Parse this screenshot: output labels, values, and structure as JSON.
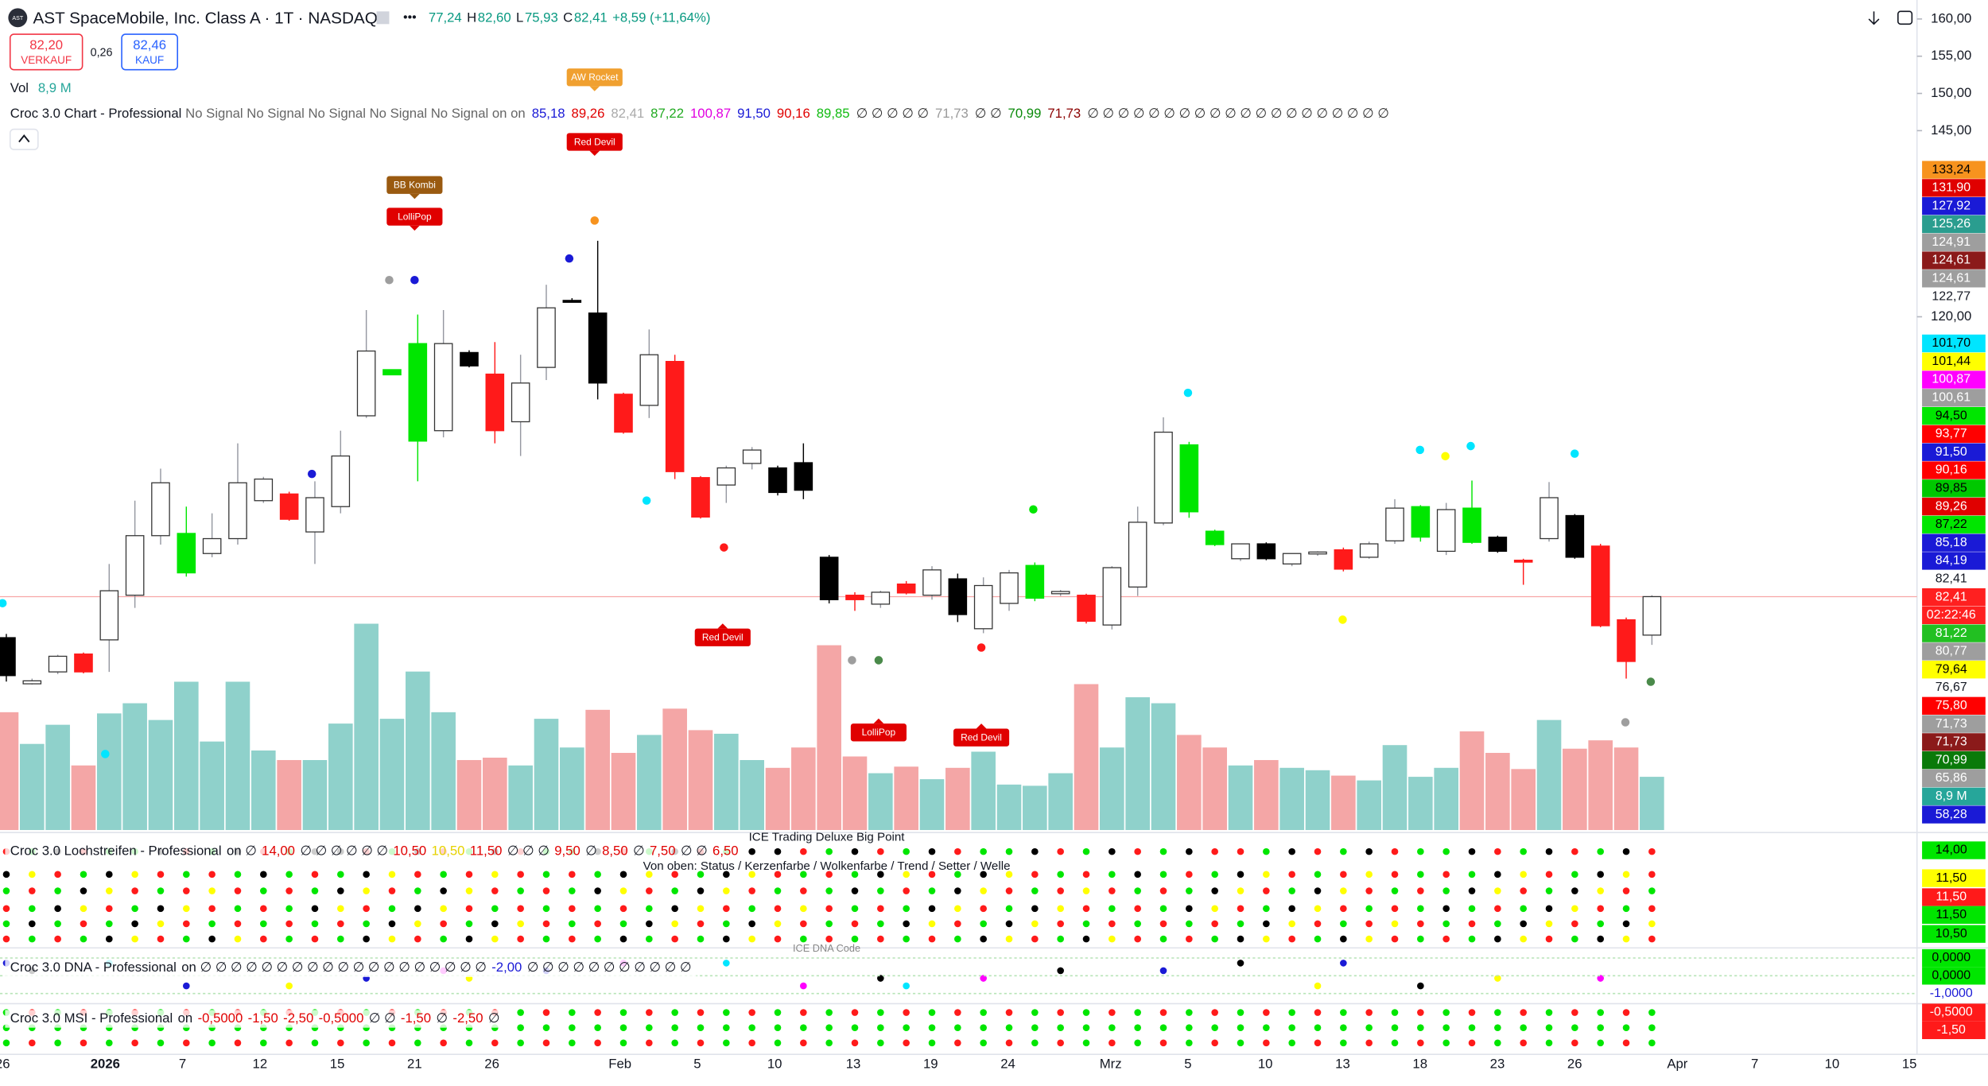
{
  "header": {
    "logo": "AST",
    "symbol": "AST SpaceMobile, Inc. Class A · 1T · NASDAQ",
    "menu": "•••",
    "ohlc": [
      {
        "value": "77,24"
      },
      {
        "key": "H",
        "value": "82,60"
      },
      {
        "key": "L",
        "value": "75,93"
      },
      {
        "key": "C",
        "value": "82,41"
      }
    ],
    "change": "+8,59 (+11,64%)",
    "sell_price": "82,20",
    "sell_label": "VERKAUF",
    "spread": "0,26",
    "buy_price": "82,46",
    "buy_label": "KAUF",
    "vol_label": "Vol",
    "vol_value": "8,9 M"
  },
  "indicator": {
    "name": "Croc 3.0 Chart - Professional",
    "signals": "No Signal No Signal No Signal No Signal No Signal on on",
    "values": [
      {
        "text": "85,18",
        "color": "#1a1ad6"
      },
      {
        "text": "89,26",
        "color": "#e00000"
      },
      {
        "text": "82,41",
        "color": "#aaaaaa"
      },
      {
        "text": "87,22",
        "color": "#22aa22"
      },
      {
        "text": "100,87",
        "color": "#e000e0"
      },
      {
        "text": "91,50",
        "color": "#1a1ad6"
      },
      {
        "text": "90,16",
        "color": "#e00000"
      },
      {
        "text": "89,85",
        "color": "#11bb11"
      },
      {
        "text": "∅ ∅ ∅ ∅ ∅",
        "color": "#333333"
      },
      {
        "text": "71,73",
        "color": "#999999"
      },
      {
        "text": "∅ ∅",
        "color": "#333333"
      },
      {
        "text": "70,99",
        "color": "#0a8a0a"
      },
      {
        "text": "71,73",
        "color": "#8b0000"
      },
      {
        "text": "∅ ∅ ∅ ∅ ∅ ∅ ∅ ∅ ∅ ∅ ∅ ∅ ∅ ∅ ∅ ∅ ∅ ∅ ∅ ∅",
        "color": "#333333"
      }
    ]
  },
  "annotations": [
    {
      "text": "AW Rocket",
      "color": "#f0a030"
    },
    {
      "text": "Red Devil",
      "color": "#e00000"
    },
    {
      "text": "BB Kombi",
      "color": "#9a5a10"
    },
    {
      "text": "LolliPop",
      "color": "#e00000"
    },
    {
      "text": "Red Devil",
      "color": "#e00000"
    },
    {
      "text": "LolliPop",
      "color": "#e00000"
    },
    {
      "text": "Red Devil",
      "color": "#e00000"
    }
  ],
  "panes": {
    "lochstreifen": {
      "name": "Croc 3.0 Lochstreifen - Professional",
      "values": [
        {
          "text": "on ∅",
          "color": "#131722"
        },
        {
          "text": "14,00",
          "color": "#e00000"
        },
        {
          "text": "∅ ∅ ∅ ∅ ∅ ∅",
          "color": "#131722"
        },
        {
          "text": "10,50",
          "color": "#e00000"
        },
        {
          "text": "10,50",
          "color": "#e6d200"
        },
        {
          "text": "11,50",
          "color": "#e00000"
        },
        {
          "text": "∅ ∅ ∅",
          "color": "#131722"
        },
        {
          "text": "9,50",
          "color": "#e00000"
        },
        {
          "text": "∅",
          "color": "#131722"
        },
        {
          "text": "8,50",
          "color": "#e00000"
        },
        {
          "text": "∅",
          "color": "#131722"
        },
        {
          "text": "7,50",
          "color": "#e00000"
        },
        {
          "text": "∅ ∅",
          "color": "#131722"
        },
        {
          "text": "6,50",
          "color": "#e00000"
        }
      ],
      "caption": "ICE Trading Deluxe Big Point",
      "legend": "Von oben: Status / Kerzenfarbe / Wolkenfarbe / Trend / Setter / Welle",
      "axis_labels": [
        {
          "label": "14,00",
          "bg": "#00e600",
          "fg": "#000000"
        },
        {
          "label": "11,50",
          "bg": "#ffff00",
          "fg": "#000000"
        },
        {
          "label": "11,50",
          "bg": "#ff1a1a",
          "fg": "#ffffff"
        },
        {
          "label": "11,50",
          "bg": "#00e600",
          "fg": "#000000"
        },
        {
          "label": "10,50",
          "bg": "#00e600",
          "fg": "#000000"
        }
      ]
    },
    "dna": {
      "name": "Croc 3.0 DNA - Professional",
      "values": [
        {
          "text": "on ∅ ∅ ∅ ∅ ∅ ∅ ∅ ∅ ∅ ∅ ∅ ∅ ∅ ∅ ∅ ∅ ∅ ∅ ∅",
          "color": "#131722"
        },
        {
          "text": "-2,00",
          "color": "#1a1ad6"
        },
        {
          "text": "∅ ∅ ∅ ∅ ∅ ∅ ∅ ∅ ∅ ∅ ∅",
          "color": "#131722"
        }
      ],
      "caption": "ICE DNA Code",
      "axis_labels": [
        {
          "label": "0,0000",
          "bg": "#00e600",
          "fg": "#000000"
        },
        {
          "label": "0,0000",
          "bg": "#00e600",
          "fg": "#000000"
        },
        {
          "label": "-1,0000",
          "bg": "#ffffff",
          "fg": "#1a1ad6"
        }
      ]
    },
    "msi": {
      "name": "Croc 3.0 MSI - Professional",
      "values": [
        {
          "text": "on",
          "color": "#131722"
        },
        {
          "text": "-0,5000",
          "color": "#e00000"
        },
        {
          "text": "-1,50",
          "color": "#e00000"
        },
        {
          "text": "-2,50",
          "color": "#e00000"
        },
        {
          "text": "-0,5000",
          "color": "#e00000"
        },
        {
          "text": "∅ ∅",
          "color": "#131722"
        },
        {
          "text": "-1,50",
          "color": "#e00000"
        },
        {
          "text": "∅",
          "color": "#131722"
        },
        {
          "text": "-2,50",
          "color": "#e00000"
        },
        {
          "text": "∅",
          "color": "#131722"
        }
      ],
      "axis_labels": [
        {
          "label": "-0,5000",
          "bg": "#ff1a1a",
          "fg": "#ffffff"
        },
        {
          "label": "-1,50",
          "bg": "#ff1a1a",
          "fg": "#ffffff"
        }
      ]
    }
  },
  "x_axis_labels": [
    "26",
    "2026",
    "7",
    "12",
    "15",
    "21",
    "26",
    "Feb",
    "5",
    "10",
    "13",
    "19",
    "24",
    "Mrz",
    "5",
    "10",
    "13",
    "18",
    "23",
    "26",
    "Apr",
    "7",
    "10",
    "15"
  ],
  "price_badges": {
    "upper": [
      {
        "label": "133,24",
        "bg": "#f7931e",
        "fg": "#000000"
      },
      {
        "label": "131,90",
        "bg": "#e00000",
        "fg": "#ffffff"
      },
      {
        "label": "127,92",
        "bg": "#1a1ad6",
        "fg": "#ffffff"
      },
      {
        "label": "125,26",
        "bg": "#2a9d8f",
        "fg": "#ffffff"
      },
      {
        "label": "124,91",
        "bg": "#9e9e9e",
        "fg": "#ffffff"
      },
      {
        "label": "124,61",
        "bg": "#8b1a1a",
        "fg": "#ffffff"
      },
      {
        "label": "124,61",
        "bg": "#9e9e9e",
        "fg": "#ffffff"
      },
      {
        "label": "122,77"
      }
    ],
    "lower": [
      {
        "label": "101,70",
        "bg": "#00e5ff",
        "fg": "#000000"
      },
      {
        "label": "101,44",
        "bg": "#ffff00",
        "fg": "#000000"
      },
      {
        "label": "100,87",
        "bg": "#ff00ff",
        "fg": "#ffffff"
      },
      {
        "label": "100,61",
        "bg": "#9e9e9e",
        "fg": "#ffffff"
      },
      {
        "label": "94,50",
        "bg": "#00e600",
        "fg": "#000000"
      },
      {
        "label": "93,77",
        "bg": "#ff0000",
        "fg": "#ffffff"
      },
      {
        "label": "91,50",
        "bg": "#1a1ad6",
        "fg": "#ffffff"
      },
      {
        "label": "90,16",
        "bg": "#ff0000",
        "fg": "#ffffff"
      },
      {
        "label": "89,85",
        "bg": "#00c800",
        "fg": "#000000"
      },
      {
        "label": "89,26",
        "bg": "#e00000",
        "fg": "#ffffff"
      },
      {
        "label": "87,22",
        "bg": "#00e600",
        "fg": "#000000"
      },
      {
        "label": "85,18",
        "bg": "#1a1ad6",
        "fg": "#ffffff"
      },
      {
        "label": "84,19",
        "bg": "#1a1ad6",
        "fg": "#ffffff"
      },
      {
        "label": "82,41"
      },
      {
        "label": "82,41",
        "bg": "#ff2020",
        "fg": "#ffffff"
      },
      {
        "label": "02:22:46",
        "bg": "#ff2020",
        "fg": "#ffffff"
      },
      {
        "label": "81,22",
        "bg": "#22c022",
        "fg": "#ffffff"
      },
      {
        "label": "80,77",
        "bg": "#9e9e9e",
        "fg": "#ffffff"
      },
      {
        "label": "79,64",
        "bg": "#ffff00",
        "fg": "#000000"
      },
      {
        "label": "76,67"
      },
      {
        "label": "75,80",
        "bg": "#ff0000",
        "fg": "#ffffff"
      },
      {
        "label": "71,73",
        "bg": "#9e9e9e",
        "fg": "#ffffff"
      },
      {
        "label": "71,73",
        "bg": "#8b1a1a",
        "fg": "#ffffff"
      },
      {
        "label": "70,99",
        "bg": "#0a7a0a",
        "fg": "#ffffff"
      },
      {
        "label": "65,86",
        "bg": "#9e9e9e",
        "fg": "#ffffff"
      },
      {
        "label": "8,9 M",
        "bg": "#26a69a",
        "fg": "#ffffff"
      },
      {
        "label": "58,28",
        "bg": "#1a1ad6",
        "fg": "#ffffff"
      }
    ]
  },
  "chart_data": {
    "type": "candlestick",
    "open": [
      76.9,
      70.7,
      72.3,
      74.7,
      76.6,
      82.6,
      90.6,
      85.6,
      88.2,
      90.2,
      95.3,
      96.2,
      91.1,
      94.5,
      106.7,
      112.2,
      103.3,
      104.7,
      115.2,
      112.3,
      105.9,
      113.2,
      122.2,
      120.5,
      109.6,
      108.1,
      114.0,
      98.4,
      97.4,
      100.3,
      99.7,
      100.4,
      87.7,
      82.6,
      81.4,
      84.1,
      82.6,
      84.8,
      78.1,
      81.5,
      82.2,
      82.8,
      82.6,
      78.6,
      83.7,
      92.3,
      102.8,
      91.2,
      87.5,
      89.5,
      86.8,
      88.2,
      88.7,
      87.7,
      89.9,
      90.4,
      88.5,
      94.3,
      90.4,
      87.3,
      90.2,
      93.3,
      89.2,
      79.3,
      77.24
    ],
    "high": [
      77.4,
      71.4,
      74.6,
      74.9,
      86.8,
      95.3,
      99.6,
      94.5,
      93.6,
      103.0,
      98.5,
      96.5,
      97.9,
      104.7,
      120.9,
      112.9,
      120.3,
      120.9,
      115.5,
      116.6,
      114.9,
      124.3,
      122.5,
      130.2,
      109.8,
      118.3,
      114.9,
      98.6,
      100.0,
      102.5,
      100.0,
      103.0,
      88.0,
      83.0,
      83.2,
      84.5,
      86.5,
      85.5,
      85.0,
      86.0,
      87.0,
      83.3,
      82.8,
      86.5,
      94.5,
      106.5,
      103.2,
      91.4,
      89.5,
      89.7,
      88.2,
      88.5,
      89.0,
      89.8,
      95.5,
      94.7,
      95.0,
      98.0,
      90.6,
      87.5,
      97.8,
      93.5,
      89.5,
      79.6,
      82.6
    ],
    "low": [
      71.0,
      70.6,
      72.0,
      72.1,
      72.3,
      80.9,
      89.4,
      85.1,
      87.7,
      89.4,
      95.0,
      92.6,
      86.8,
      93.6,
      106.4,
      112.2,
      97.9,
      103.8,
      113.2,
      103.0,
      101.3,
      111.5,
      122.0,
      108.9,
      104.3,
      106.4,
      98.2,
      92.9,
      95.0,
      99.5,
      96.0,
      95.5,
      81.5,
      80.5,
      80.9,
      82.7,
      82.0,
      79.0,
      77.5,
      80.5,
      81.8,
      82.5,
      78.8,
      78.0,
      82.5,
      92.0,
      93.0,
      89.2,
      87.2,
      87.3,
      86.5,
      87.9,
      85.8,
      87.5,
      89.5,
      89.8,
      88.0,
      89.5,
      88.3,
      84.0,
      89.8,
      87.5,
      78.3,
      71.4,
      75.93
    ],
    "close": [
      71.8,
      71.1,
      74.4,
      72.3,
      83.2,
      90.6,
      97.7,
      90.9,
      90.2,
      97.7,
      98.2,
      92.8,
      95.7,
      101.3,
      115.4,
      112.9,
      116.4,
      116.4,
      113.4,
      104.7,
      111.1,
      121.2,
      122.2,
      111.1,
      104.5,
      114.9,
      99.2,
      93.1,
      99.7,
      102.1,
      96.4,
      96.7,
      82.0,
      82.0,
      83.0,
      82.9,
      86.0,
      80.0,
      83.9,
      85.6,
      86.6,
      83.1,
      79.1,
      86.3,
      92.4,
      104.5,
      93.8,
      89.4,
      89.5,
      87.5,
      88.2,
      88.4,
      86.1,
      89.5,
      94.3,
      94.5,
      94.1,
      89.7,
      88.5,
      87.1,
      95.7,
      87.7,
      78.5,
      73.7,
      82.41
    ],
    "colors": [
      "#000000",
      "#ffffff",
      "#ffffff",
      "#ff1a1a",
      "#ffffff",
      "#ffffff",
      "#ffffff",
      "#00e600",
      "#ffffff",
      "#ffffff",
      "#ffffff",
      "#ff1a1a",
      "#ffffff",
      "#ffffff",
      "#ffffff",
      "#00e600",
      "#00e600",
      "#ffffff",
      "#000000",
      "#ff1a1a",
      "#ffffff",
      "#ffffff",
      "#000000",
      "#000000",
      "#ff1a1a",
      "#ffffff",
      "#ff1a1a",
      "#ff1a1a",
      "#ffffff",
      "#ffffff",
      "#000000",
      "#000000",
      "#000000",
      "#ff1a1a",
      "#ffffff",
      "#ff1a1a",
      "#ffffff",
      "#000000",
      "#ffffff",
      "#ffffff",
      "#00e600",
      "#ffffff",
      "#ff1a1a",
      "#ffffff",
      "#ffffff",
      "#ffffff",
      "#00e600",
      "#00e600",
      "#ffffff",
      "#000000",
      "#ffffff",
      "#ffffff",
      "#ff1a1a",
      "#ffffff",
      "#ffffff",
      "#00e600",
      "#ffffff",
      "#00e600",
      "#000000",
      "#ff1a1a",
      "#ffffff",
      "#000000",
      "#ff1a1a",
      "#ff1a1a",
      "#ffffff"
    ],
    "ylim": [
      51.06,
      162.55
    ],
    "yticks": [
      {
        "value": 160,
        "label": "160,00"
      },
      {
        "value": 155,
        "label": "155,00"
      },
      {
        "value": 150,
        "label": "150,00"
      },
      {
        "value": 145,
        "label": "145,00"
      },
      {
        "value": 120,
        "label": "120,00"
      }
    ],
    "volume": {
      "values": [
        19.7,
        14.4,
        17.6,
        10.8,
        19.5,
        21.2,
        18.4,
        24.8,
        14.8,
        24.8,
        13.3,
        11.7,
        11.7,
        17.8,
        34.5,
        18.6,
        26.5,
        19.7,
        11.7,
        12.1,
        10.8,
        18.6,
        13.8,
        20.1,
        12.9,
        15.9,
        20.3,
        16.7,
        16.1,
        11.7,
        10.4,
        13.8,
        30.9,
        12.3,
        9.5,
        10.6,
        8.5,
        10.4,
        13.1,
        7.6,
        7.4,
        9.5,
        24.4,
        13.8,
        22.2,
        21.2,
        15.9,
        13.8,
        10.8,
        11.7,
        10.4,
        10.0,
        9.1,
        8.3,
        14.2,
        8.9,
        10.4,
        16.5,
        12.9,
        10.2,
        18.4,
        13.6,
        15.0,
        13.8,
        8.9
      ],
      "ylim": [
        0,
        138.8
      ],
      "up_color": "#8fd1cb",
      "down_color": "#f4a6a6"
    }
  }
}
